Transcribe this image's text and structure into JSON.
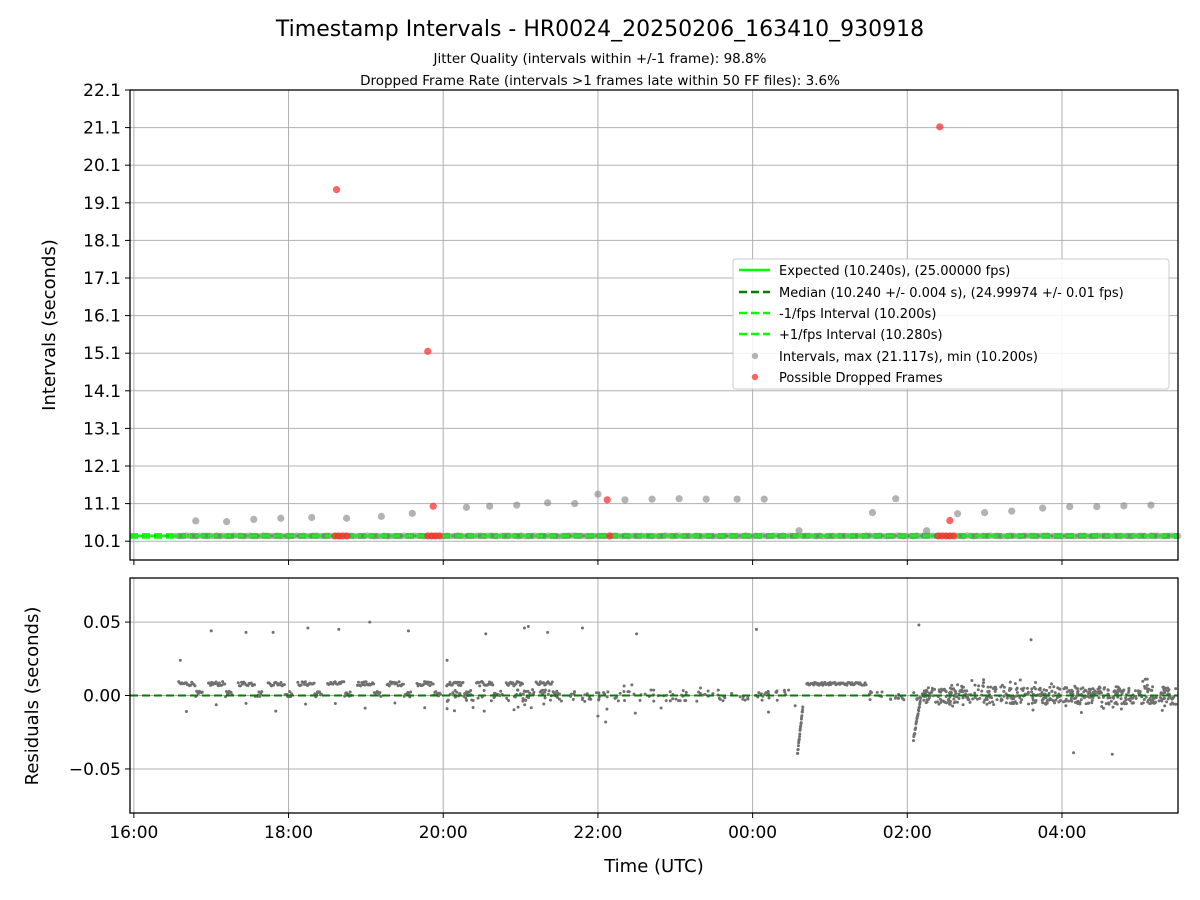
{
  "chart_data": {
    "title": "Timestamp Intervals - HR0024_20250206_163410_930918",
    "subtitle_1": "Jitter Quality (intervals within +/-1 frame): 98.8%",
    "subtitle_2": "Dropped Frame Rate (intervals >1 frames late within 50 FF files): 3.6%",
    "xlabel": "Time (UTC)",
    "x_ticks": [
      "16:00",
      "18:00",
      "20:00",
      "22:00",
      "00:00",
      "02:00",
      "04:00"
    ],
    "x_range_hours": [
      15.95,
      29.5
    ],
    "top_panel": {
      "type": "scatter",
      "ylabel": "Intervals (seconds)",
      "ylim": [
        9.6,
        22.1
      ],
      "y_ticks": [
        "10.1",
        "11.1",
        "12.1",
        "13.1",
        "14.1",
        "15.1",
        "16.1",
        "17.1",
        "18.1",
        "19.1",
        "20.1",
        "21.1",
        "22.1"
      ],
      "grid": true,
      "legend_position": "center-right",
      "lines": [
        {
          "name": "Expected (10.240s), (25.00000 fps)",
          "value": 10.24,
          "style": "solid",
          "color": "#00ff00"
        },
        {
          "name": "Median (10.240 +/- 0.004 s), (24.99974 +/- 0.01 fps)",
          "value": 10.24,
          "style": "dashed",
          "color": "#007f00"
        },
        {
          "name": "-1/fps Interval (10.200s)",
          "value": 10.2,
          "style": "dashed",
          "color": "#00ff00"
        },
        {
          "name": "+1/fps Interval (10.280s)",
          "value": 10.28,
          "style": "dashed",
          "color": "#00ff00"
        }
      ],
      "intervals_series": {
        "name": "Intervals, max (21.117s), min (10.200s)",
        "color": "#808080",
        "baseline_value": 10.24,
        "baseline_x_range": [
          16.55,
          29.5
        ],
        "elevated_points": [
          [
            16.8,
            10.64
          ],
          [
            17.2,
            10.62
          ],
          [
            17.55,
            10.68
          ],
          [
            17.9,
            10.71
          ],
          [
            18.3,
            10.73
          ],
          [
            18.75,
            10.71
          ],
          [
            19.2,
            10.76
          ],
          [
            19.6,
            10.84
          ],
          [
            20.3,
            11.0
          ],
          [
            20.6,
            11.03
          ],
          [
            20.95,
            11.06
          ],
          [
            21.35,
            11.12
          ],
          [
            21.7,
            11.1
          ],
          [
            22.0,
            11.35
          ],
          [
            22.35,
            11.2
          ],
          [
            22.7,
            11.22
          ],
          [
            23.05,
            11.23
          ],
          [
            23.4,
            11.22
          ],
          [
            23.8,
            11.22
          ],
          [
            24.15,
            11.22
          ],
          [
            24.6,
            10.38
          ],
          [
            25.55,
            10.86
          ],
          [
            25.85,
            11.23
          ],
          [
            26.25,
            10.38
          ],
          [
            26.65,
            10.83
          ],
          [
            27.0,
            10.86
          ],
          [
            27.35,
            10.9
          ],
          [
            27.75,
            10.98
          ],
          [
            28.1,
            11.02
          ],
          [
            28.45,
            11.02
          ],
          [
            28.8,
            11.04
          ],
          [
            29.15,
            11.06
          ]
        ]
      },
      "dropped_series": {
        "name": "Possible Dropped Frames",
        "color": "#ff3030",
        "points": [
          [
            18.62,
            19.45
          ],
          [
            19.8,
            15.15
          ],
          [
            19.87,
            11.03
          ],
          [
            22.12,
            11.2
          ],
          [
            26.42,
            21.12
          ],
          [
            26.55,
            10.65
          ],
          [
            18.6,
            10.24
          ],
          [
            18.65,
            10.24
          ],
          [
            18.7,
            10.24
          ],
          [
            18.75,
            10.24
          ],
          [
            19.8,
            10.24
          ],
          [
            19.85,
            10.24
          ],
          [
            19.9,
            10.24
          ],
          [
            19.95,
            10.24
          ],
          [
            22.15,
            10.24
          ],
          [
            26.4,
            10.24
          ],
          [
            26.45,
            10.24
          ],
          [
            26.5,
            10.24
          ],
          [
            26.55,
            10.24
          ],
          [
            26.6,
            10.24
          ]
        ]
      }
    },
    "bottom_panel": {
      "type": "scatter",
      "ylabel": "Residuals (seconds)",
      "ylim": [
        -0.08,
        0.08
      ],
      "y_ticks": [
        "0.05",
        "0.00",
        "−0.05"
      ],
      "y_tick_values": [
        0.05,
        0.0,
        -0.05
      ],
      "grid": true,
      "zero_line": 0.0,
      "scatter_color": "#707070",
      "outliers": [
        [
          16.6,
          0.024
        ],
        [
          17.0,
          0.044
        ],
        [
          17.45,
          0.043
        ],
        [
          17.8,
          0.043
        ],
        [
          18.25,
          0.046
        ],
        [
          18.65,
          0.045
        ],
        [
          19.05,
          0.05
        ],
        [
          19.55,
          0.044
        ],
        [
          20.05,
          0.024
        ],
        [
          20.55,
          0.042
        ],
        [
          21.05,
          0.046
        ],
        [
          21.1,
          0.047
        ],
        [
          21.35,
          0.043
        ],
        [
          21.8,
          0.046
        ],
        [
          22.5,
          0.042
        ],
        [
          24.05,
          0.045
        ],
        [
          26.15,
          0.048
        ],
        [
          27.6,
          0.038
        ],
        [
          28.15,
          -0.039
        ],
        [
          28.65,
          -0.04
        ],
        [
          22.0,
          -0.014
        ],
        [
          22.1,
          -0.018
        ],
        [
          20.05,
          -0.009
        ],
        [
          24.55,
          -0.007
        ]
      ]
    }
  }
}
